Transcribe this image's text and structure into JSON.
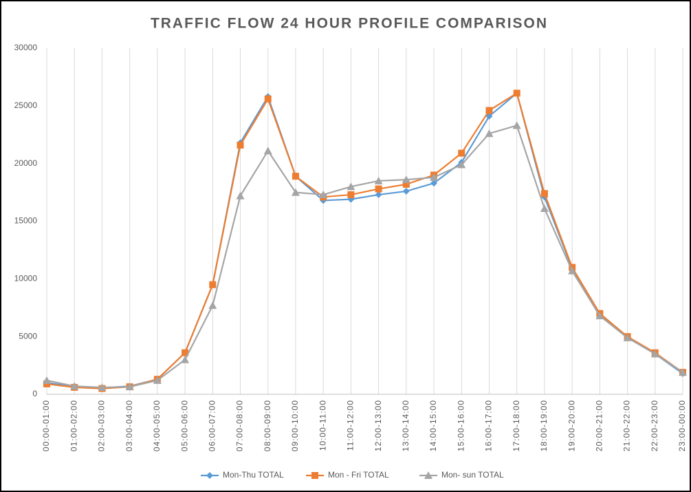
{
  "chart_data": {
    "type": "line",
    "title": "TRAFFIC FLOW 24 HOUR PROFILE COMPARISON",
    "categories": [
      "00:00-01:00",
      "01:00-02:00",
      "02:00-03:00",
      "03:00-04:00",
      "04:00-05:00",
      "05:00-06:00",
      "06:00-07:00",
      "07:00-08:00",
      "08:00-09:00",
      "09:00-10:00",
      "10:00-11:00",
      "11:00-12:00",
      "12:00-13:00",
      "13:00-14:00",
      "14:00-15:00",
      "15:00-16:00",
      "16:00-17:00",
      "17:00-18:00",
      "18:00-19:00",
      "19:00-20:00",
      "20:00-21:00",
      "21:00-22:00",
      "22:00-23:00",
      "23:00-00:00"
    ],
    "series": [
      {
        "name": "Mon-Thu TOTAL",
        "color": "#5b9bd5",
        "marker": "diamond",
        "values": [
          1000,
          650,
          550,
          700,
          1300,
          3600,
          9500,
          21800,
          25800,
          18900,
          16800,
          16900,
          17300,
          17600,
          18300,
          20100,
          24100,
          26100,
          17100,
          10900,
          6900,
          5000,
          3500,
          1800
        ]
      },
      {
        "name": "Mon - Fri TOTAL",
        "color": "#ed7d31",
        "marker": "square",
        "values": [
          900,
          600,
          500,
          650,
          1300,
          3600,
          9500,
          21600,
          25600,
          18900,
          17100,
          17300,
          17800,
          18200,
          19000,
          20900,
          24600,
          26100,
          17400,
          11000,
          7000,
          5000,
          3600,
          1900
        ]
      },
      {
        "name": "Mon- sun TOTAL",
        "color": "#a5a5a5",
        "marker": "triangle",
        "values": [
          1200,
          700,
          600,
          650,
          1200,
          3000,
          7700,
          17200,
          21100,
          17500,
          17300,
          18000,
          18500,
          18600,
          18800,
          19900,
          22600,
          23300,
          16100,
          10700,
          6800,
          4900,
          3500,
          1900
        ]
      }
    ],
    "ylim": [
      0,
      30000
    ],
    "yticks": [
      0,
      5000,
      10000,
      15000,
      20000,
      25000,
      30000
    ],
    "grid": "vertical",
    "legend": "bottom"
  }
}
